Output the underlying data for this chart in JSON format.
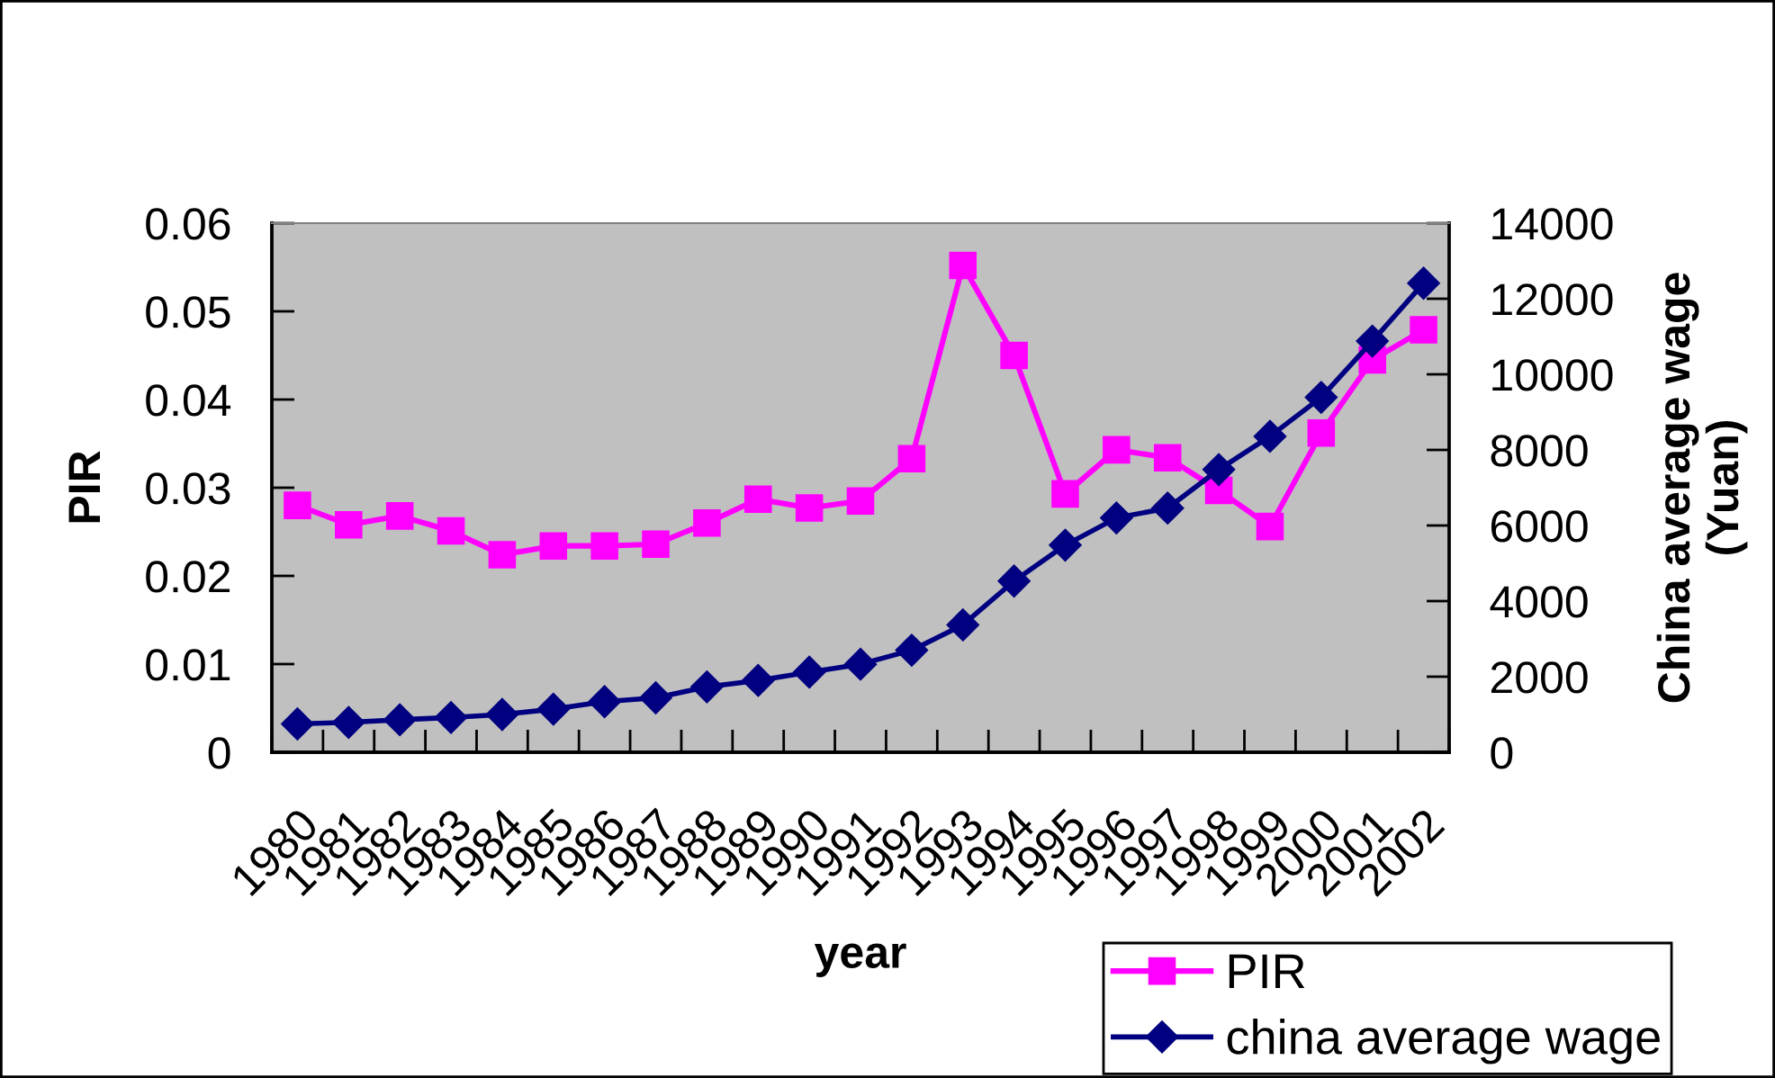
{
  "chart_data": {
    "type": "line",
    "xlabel": "year",
    "ylabel": "PIR",
    "y2label": "China average wage\n(Yuan)",
    "categories": [
      "1980",
      "1981",
      "1982",
      "1983",
      "1984",
      "1985",
      "1986",
      "1987",
      "1988",
      "1989",
      "1990",
      "1991",
      "1992",
      "1993",
      "1994",
      "1995",
      "1996",
      "1997",
      "1998",
      "1999",
      "2000",
      "2001",
      "2002"
    ],
    "series": [
      {
        "name": "PIR",
        "color": "#ff00ff",
        "marker": "square",
        "values": [
          0.028,
          0.0258,
          0.0268,
          0.0251,
          0.0224,
          0.0234,
          0.0234,
          0.0236,
          0.026,
          0.0287,
          0.0277,
          0.0285,
          0.0333,
          0.0552,
          0.045,
          0.0293,
          0.0343,
          0.0334,
          0.0297,
          0.0256,
          0.0362,
          0.0445,
          0.0479
        ]
      },
      {
        "name": "china average wage",
        "color": "#000080",
        "marker": "diamond",
        "axis": "y2",
        "values": [
          750,
          790,
          860,
          920,
          1000,
          1140,
          1340,
          1440,
          1730,
          1900,
          2120,
          2330,
          2700,
          3370,
          4530,
          5480,
          6200,
          6460,
          7480,
          8360,
          9390,
          10880,
          12410
        ]
      }
    ],
    "ylim": [
      0,
      0.06
    ],
    "yticks": [
      0,
      0.01,
      0.02,
      0.03,
      0.04,
      0.05,
      0.06
    ],
    "y2lim": [
      0,
      14000
    ],
    "y2ticks": [
      0,
      2000,
      4000,
      6000,
      8000,
      10000,
      12000,
      14000
    ],
    "legend": "bottom right",
    "line_style": "solid",
    "grid": false
  }
}
